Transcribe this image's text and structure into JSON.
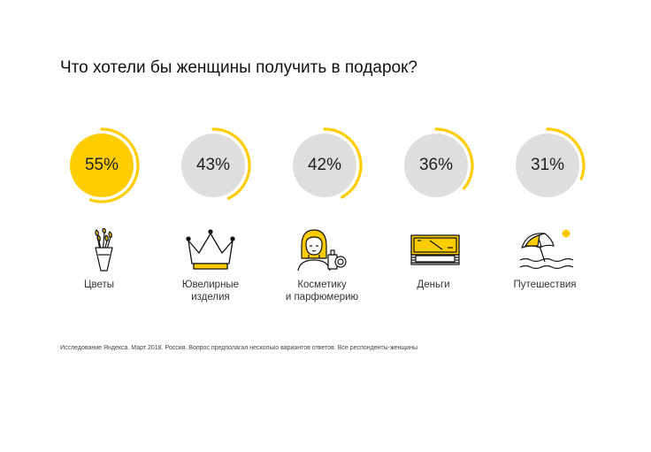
{
  "title": "Что хотели бы женщины получить в подарок?",
  "footnote": "Исследование Яндекса. Март 2018. Россия. Вопрос предполагал несколько вариантов ответов. Все респонденты-женщины",
  "colors": {
    "accent": "#ffcc00",
    "disc": "#dedede",
    "text": "#1a1a1a"
  },
  "chart_data": {
    "type": "radial-progress",
    "title": "Что хотели бы женщины получить в подарок?",
    "categories": [
      "Цветы",
      "Ювелирные изделия",
      "Косметику и парфюмерию",
      "Деньги",
      "Путешествия"
    ],
    "values": [
      55,
      43,
      42,
      36,
      31
    ],
    "unit": "%",
    "items": [
      {
        "category": "Цветы",
        "label": "Цветы",
        "value": 55,
        "pct_label": "55%",
        "icon": "flowers-bouquet-icon",
        "highlight": true
      },
      {
        "category": "Ювелирные изделия",
        "label": "Ювелирные\nизделия",
        "value": 43,
        "pct_label": "43%",
        "icon": "crown-icon",
        "highlight": false
      },
      {
        "category": "Косметику и парфюмерию",
        "label": "Косметику\nи парфюмерию",
        "value": 42,
        "pct_label": "42%",
        "icon": "woman-perfume-icon",
        "highlight": false
      },
      {
        "category": "Деньги",
        "label": "Деньги",
        "value": 36,
        "pct_label": "36%",
        "icon": "money-stack-icon",
        "highlight": false
      },
      {
        "category": "Путешествия",
        "label": "Путешествия",
        "value": 31,
        "pct_label": "31%",
        "icon": "beach-umbrella-icon",
        "highlight": false
      }
    ]
  }
}
